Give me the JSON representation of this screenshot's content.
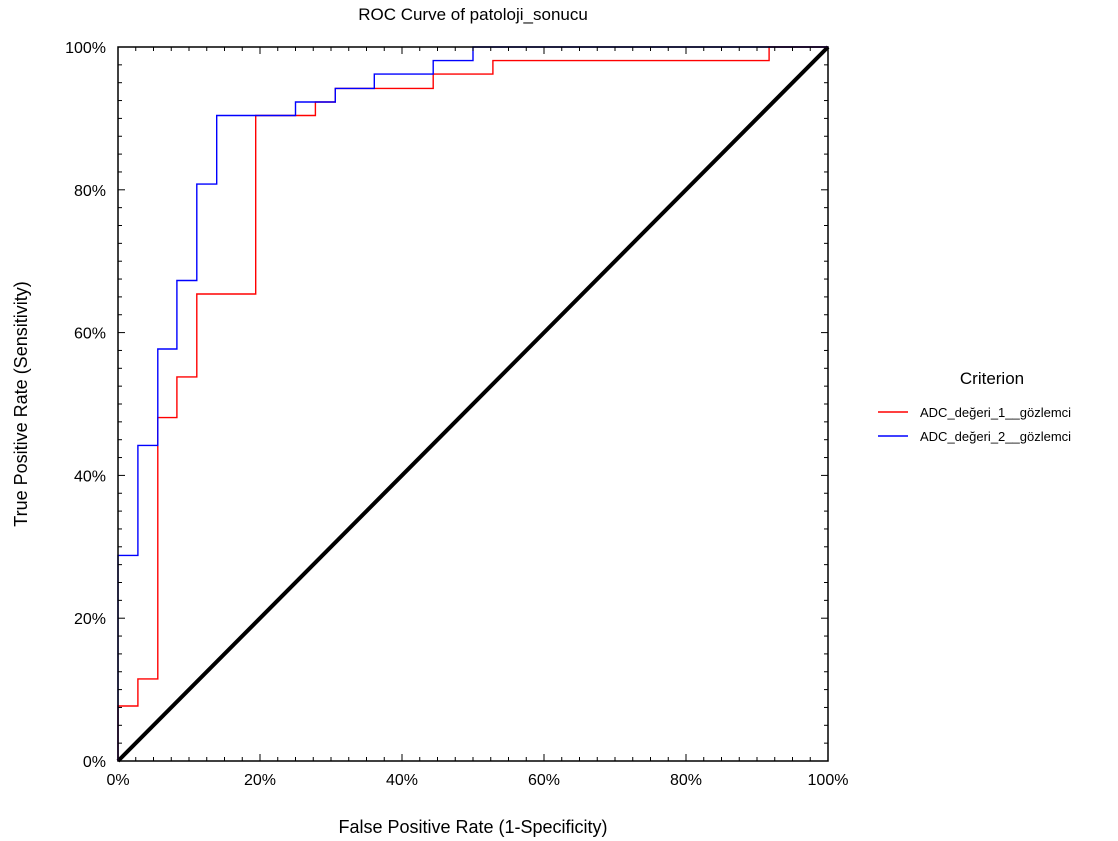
{
  "chart_data": {
    "type": "line",
    "title": "ROC Curve of patoloji_sonucu",
    "xlabel": "False Positive Rate (1-Specificity)",
    "ylabel": "True Positive Rate (Sensitivity)",
    "xlim": [
      0,
      1
    ],
    "ylim": [
      0,
      1
    ],
    "x_ticks": [
      0,
      0.2,
      0.4,
      0.6,
      0.8,
      1.0
    ],
    "x_tick_labels": [
      "0%",
      "20%",
      "40%",
      "60%",
      "80%",
      "100%"
    ],
    "y_ticks": [
      0,
      0.2,
      0.4,
      0.6,
      0.8,
      1.0
    ],
    "y_tick_labels": [
      "0%",
      "20%",
      "40%",
      "60%",
      "80%",
      "100%"
    ],
    "grid": false,
    "legend": {
      "title": "Criterion",
      "position": "right"
    },
    "reference_line": {
      "x": [
        0,
        1
      ],
      "y": [
        0,
        1
      ],
      "color": "#000000"
    },
    "series": [
      {
        "name": "ADC_değeri_1__gözlemci",
        "color": "#ff0000",
        "x": [
          0,
          0,
          0.028,
          0.028,
          0.056,
          0.056,
          0.083,
          0.083,
          0.111,
          0.111,
          0.194,
          0.194,
          0.278,
          0.278,
          0.306,
          0.306,
          0.444,
          0.444,
          0.528,
          0.528,
          0.917,
          0.917,
          1.0
        ],
        "y": [
          0,
          0.077,
          0.077,
          0.115,
          0.115,
          0.481,
          0.481,
          0.538,
          0.538,
          0.654,
          0.654,
          0.904,
          0.904,
          0.923,
          0.923,
          0.942,
          0.942,
          0.962,
          0.962,
          0.981,
          0.981,
          1.0,
          1.0
        ]
      },
      {
        "name": "ADC_değeri_2__gözlemci",
        "color": "#0000ff",
        "x": [
          0,
          0,
          0.028,
          0.028,
          0.056,
          0.056,
          0.083,
          0.083,
          0.111,
          0.111,
          0.139,
          0.139,
          0.25,
          0.25,
          0.306,
          0.306,
          0.361,
          0.361,
          0.444,
          0.444,
          0.5,
          0.5,
          1.0
        ],
        "y": [
          0,
          0.288,
          0.288,
          0.442,
          0.442,
          0.577,
          0.577,
          0.673,
          0.673,
          0.808,
          0.808,
          0.904,
          0.904,
          0.923,
          0.923,
          0.942,
          0.942,
          0.962,
          0.962,
          0.981,
          0.981,
          1.0,
          1.0
        ]
      }
    ]
  }
}
